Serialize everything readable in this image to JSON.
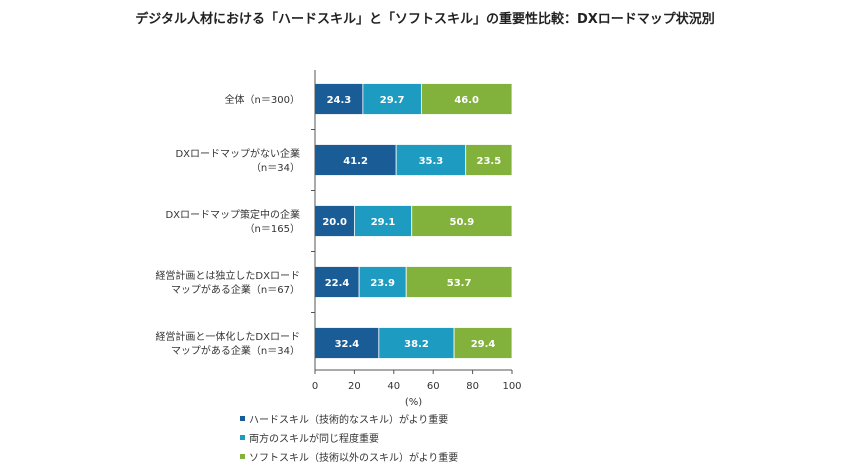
{
  "chart_data": {
    "type": "bar",
    "orientation": "horizontal",
    "stacked": true,
    "title": "デジタル人材における「ハードスキル」と「ソフトスキル」の重要性比較：DXロードマップ状況別",
    "xlabel": "(%)",
    "xlim": [
      0,
      100
    ],
    "xticks": [
      0,
      20,
      40,
      60,
      80,
      100
    ],
    "grid": false,
    "legend_position": "bottom-left",
    "categories": [
      "全体（n＝300）",
      "DXロードマップがない企業\n（n＝34）",
      "DXロードマップ策定中の企業\n（n＝165）",
      "経営計画とは独立したDXロード\nマップがある企業（n＝67）",
      "経営計画と一体化したDXロード\nマップがある企業（n＝34）"
    ],
    "series": [
      {
        "name": "ハードスキル（技術的なスキル）がより重要",
        "color": "#1a5c96",
        "values": [
          24.3,
          41.2,
          20.0,
          22.4,
          32.4
        ],
        "labels": [
          "24.3",
          "41.2",
          "20.0",
          "22.4",
          "32.4"
        ]
      },
      {
        "name": "両方のスキルが同じ程度重要",
        "color": "#1e9bc0",
        "values": [
          29.7,
          35.3,
          29.1,
          23.9,
          38.2
        ],
        "labels": [
          "29.7",
          "35.3",
          "29.1",
          "23.9",
          "38.2"
        ]
      },
      {
        "name": "ソフトスキル（技術以外のスキル）がより重要",
        "color": "#82b23c",
        "values": [
          46.0,
          23.5,
          50.9,
          53.7,
          29.4
        ],
        "labels": [
          "46.0",
          "23.5",
          "50.9",
          "53.7",
          "29.4"
        ]
      }
    ]
  }
}
